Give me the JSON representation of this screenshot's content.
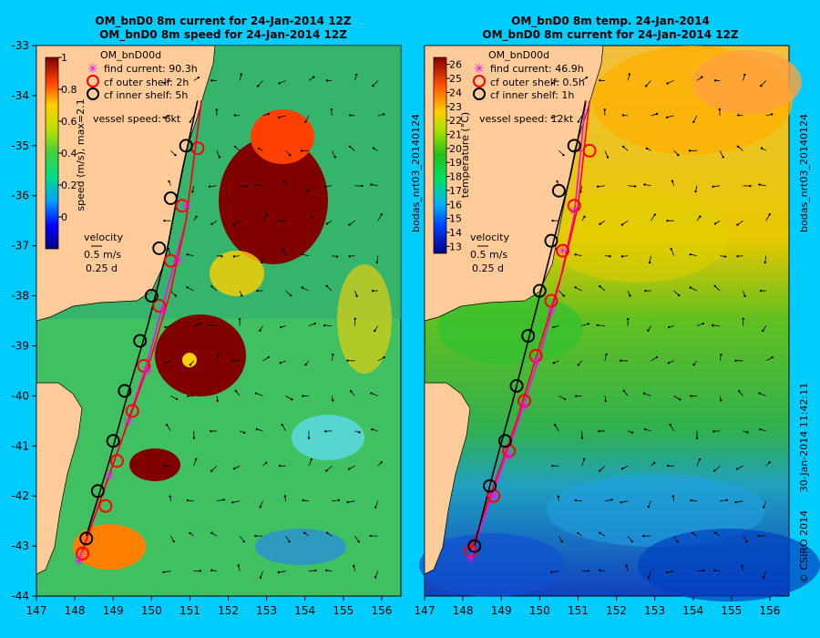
{
  "colors": {
    "background": "#00ccff",
    "land": "#ffcc99",
    "outer_shelf": "#ff0000",
    "inner_shelf": "#000000",
    "find_current": "#ff00ff"
  },
  "side_text": {
    "left_id": "bodas_nrt03_20140124",
    "right_id": "bodas_nrt03_20140124",
    "timestamp": "30-Jan-2014 11:42:11",
    "copyright": "© CSIRO 2014"
  },
  "chart_data": [
    {
      "type": "heatmap",
      "title": "OM_bnD0 8m current for 24-Jan-2014 12Z",
      "subtitle": "OM_bnD0 8m speed for 24-Jan-2014 12Z",
      "xlim": [
        147,
        156.5
      ],
      "ylim": [
        -44,
        -33
      ],
      "x_ticks": [
        "147",
        "148",
        "149",
        "150",
        "151",
        "152",
        "153",
        "154",
        "155",
        "156"
      ],
      "y_ticks": [
        "-33",
        "-34",
        "-35",
        "-36",
        "-37",
        "-38",
        "-39",
        "-40",
        "-41",
        "-42",
        "-43",
        "-44"
      ],
      "colorbar": {
        "label": "speed (m/s), max=2.1",
        "min": -0.2,
        "max": 1.0,
        "ticks": [
          "1",
          "0.8",
          "0.6",
          "0.4",
          "0.2",
          "0"
        ],
        "tick_values": [
          1,
          0.8,
          0.6,
          0.4,
          0.2,
          0
        ]
      },
      "legend": {
        "header": "OM_bnD00d",
        "find_current": "find current: 90.3h",
        "outer_shelf": "cf outer shelf: 2h",
        "inner_shelf": "cf inner shelf: 5h",
        "vessel_speed": "vessel speed: 6kt"
      },
      "velocity_key": {
        "title": "velocity",
        "speed": "0.5 m/s",
        "time": "0.25 d"
      },
      "series": [
        {
          "name": "find current",
          "x": [
            148.1,
            148.7,
            149.3,
            149.9,
            150.4,
            150.9,
            151.3
          ],
          "y": [
            -43.3,
            -42.0,
            -40.7,
            -39.3,
            -37.9,
            -36.5,
            -34.1
          ]
        },
        {
          "name": "cf outer shelf",
          "x": [
            148.2,
            148.8,
            149.4,
            150.0,
            150.5,
            150.9,
            151.3
          ],
          "y": [
            -43.1,
            -41.8,
            -40.5,
            -39.2,
            -37.9,
            -36.5,
            -34.1
          ]
        },
        {
          "name": "cf inner shelf",
          "x": [
            148.3,
            148.9,
            149.4,
            149.9,
            150.4,
            150.8,
            151.2
          ],
          "y": [
            -42.8,
            -41.3,
            -39.9,
            -38.6,
            -37.1,
            -35.5,
            -34.1
          ]
        }
      ],
      "markers": {
        "find_current": [
          [
            148.1,
            -43.3
          ],
          [
            148.9,
            -41.6
          ],
          [
            149.4,
            -40.5
          ],
          [
            149.9,
            -39.5
          ],
          [
            150.3,
            -38.3
          ],
          [
            150.7,
            -37.3
          ],
          [
            150.9,
            -36.2
          ]
        ],
        "outer_shelf": [
          [
            148.2,
            -43.15
          ],
          [
            148.8,
            -42.2
          ],
          [
            149.1,
            -41.3
          ],
          [
            149.5,
            -40.3
          ],
          [
            149.8,
            -39.4
          ],
          [
            150.2,
            -38.2
          ],
          [
            150.5,
            -37.3
          ],
          [
            150.8,
            -36.2
          ],
          [
            151.2,
            -35.05
          ]
        ],
        "inner_shelf": [
          [
            148.3,
            -42.85
          ],
          [
            148.6,
            -41.9
          ],
          [
            149.0,
            -40.9
          ],
          [
            149.3,
            -39.9
          ],
          [
            149.7,
            -38.9
          ],
          [
            150.0,
            -38.0
          ],
          [
            150.2,
            -37.05
          ],
          [
            150.5,
            -36.05
          ],
          [
            150.9,
            -35.0
          ]
        ]
      }
    },
    {
      "type": "heatmap",
      "title": "OM_bnD0 8m temp. 24-Jan-2014",
      "subtitle": "OM_bnD0 8m current for 24-Jan-2014 12Z",
      "xlim": [
        147,
        156.5
      ],
      "ylim": [
        -44,
        -33
      ],
      "x_ticks": [
        "147",
        "148",
        "149",
        "150",
        "151",
        "152",
        "153",
        "154",
        "155",
        "156"
      ],
      "y_ticks": [],
      "colorbar": {
        "label": "temperature (°C)",
        "min": 12.5,
        "max": 26.5,
        "ticks": [
          "26",
          "25",
          "24",
          "23",
          "22",
          "21",
          "20",
          "19",
          "18",
          "17",
          "16",
          "15",
          "14",
          "13"
        ],
        "tick_values": [
          26,
          25,
          24,
          23,
          22,
          21,
          20,
          19,
          18,
          17,
          16,
          15,
          14,
          13
        ]
      },
      "legend": {
        "header": "OM_bnD00d",
        "find_current": "find current: 46.9h",
        "outer_shelf": "cf outer shelf: 0.5h",
        "inner_shelf": "cf inner shelf: 1h",
        "vessel_speed": "vessel speed: 12kt"
      },
      "velocity_key": {
        "title": "velocity",
        "speed": "0.5 m/s",
        "time": "0.25 d"
      },
      "series": [
        {
          "name": "find current",
          "x": [
            148.2,
            148.8,
            149.4,
            150.0,
            150.5,
            150.9,
            151.2
          ],
          "y": [
            -43.2,
            -41.9,
            -40.6,
            -39.2,
            -37.8,
            -36.4,
            -34.1
          ]
        },
        {
          "name": "cf outer shelf",
          "x": [
            148.2,
            148.8,
            149.4,
            150.0,
            150.6,
            151.0,
            151.3
          ],
          "y": [
            -43.1,
            -41.8,
            -40.5,
            -39.0,
            -37.5,
            -36.2,
            -34.1
          ]
        },
        {
          "name": "cf inner shelf",
          "x": [
            148.3,
            148.8,
            149.3,
            149.8,
            150.3,
            150.8,
            151.2
          ],
          "y": [
            -43.0,
            -41.5,
            -40.1,
            -38.6,
            -37.1,
            -35.6,
            -34.1
          ]
        }
      ],
      "markers": {
        "find_current": [
          [
            148.2,
            -43.25
          ],
          [
            148.8,
            -42.0
          ],
          [
            149.2,
            -41.2
          ],
          [
            149.6,
            -40.2
          ],
          [
            149.9,
            -39.3
          ],
          [
            150.3,
            -38.3
          ],
          [
            150.6,
            -37.1
          ],
          [
            150.9,
            -36.3
          ]
        ],
        "outer_shelf": [
          [
            148.2,
            -43.1
          ],
          [
            148.8,
            -42.0
          ],
          [
            149.2,
            -41.1
          ],
          [
            149.6,
            -40.1
          ],
          [
            149.9,
            -39.2
          ],
          [
            150.3,
            -38.1
          ],
          [
            150.6,
            -37.1
          ],
          [
            150.9,
            -36.2
          ],
          [
            151.3,
            -35.1
          ]
        ],
        "inner_shelf": [
          [
            148.3,
            -43.0
          ],
          [
            148.7,
            -41.8
          ],
          [
            149.1,
            -40.9
          ],
          [
            149.4,
            -39.8
          ],
          [
            149.7,
            -38.8
          ],
          [
            150.0,
            -37.9
          ],
          [
            150.3,
            -36.9
          ],
          [
            150.5,
            -35.9
          ],
          [
            150.9,
            -35.0
          ]
        ]
      }
    }
  ]
}
